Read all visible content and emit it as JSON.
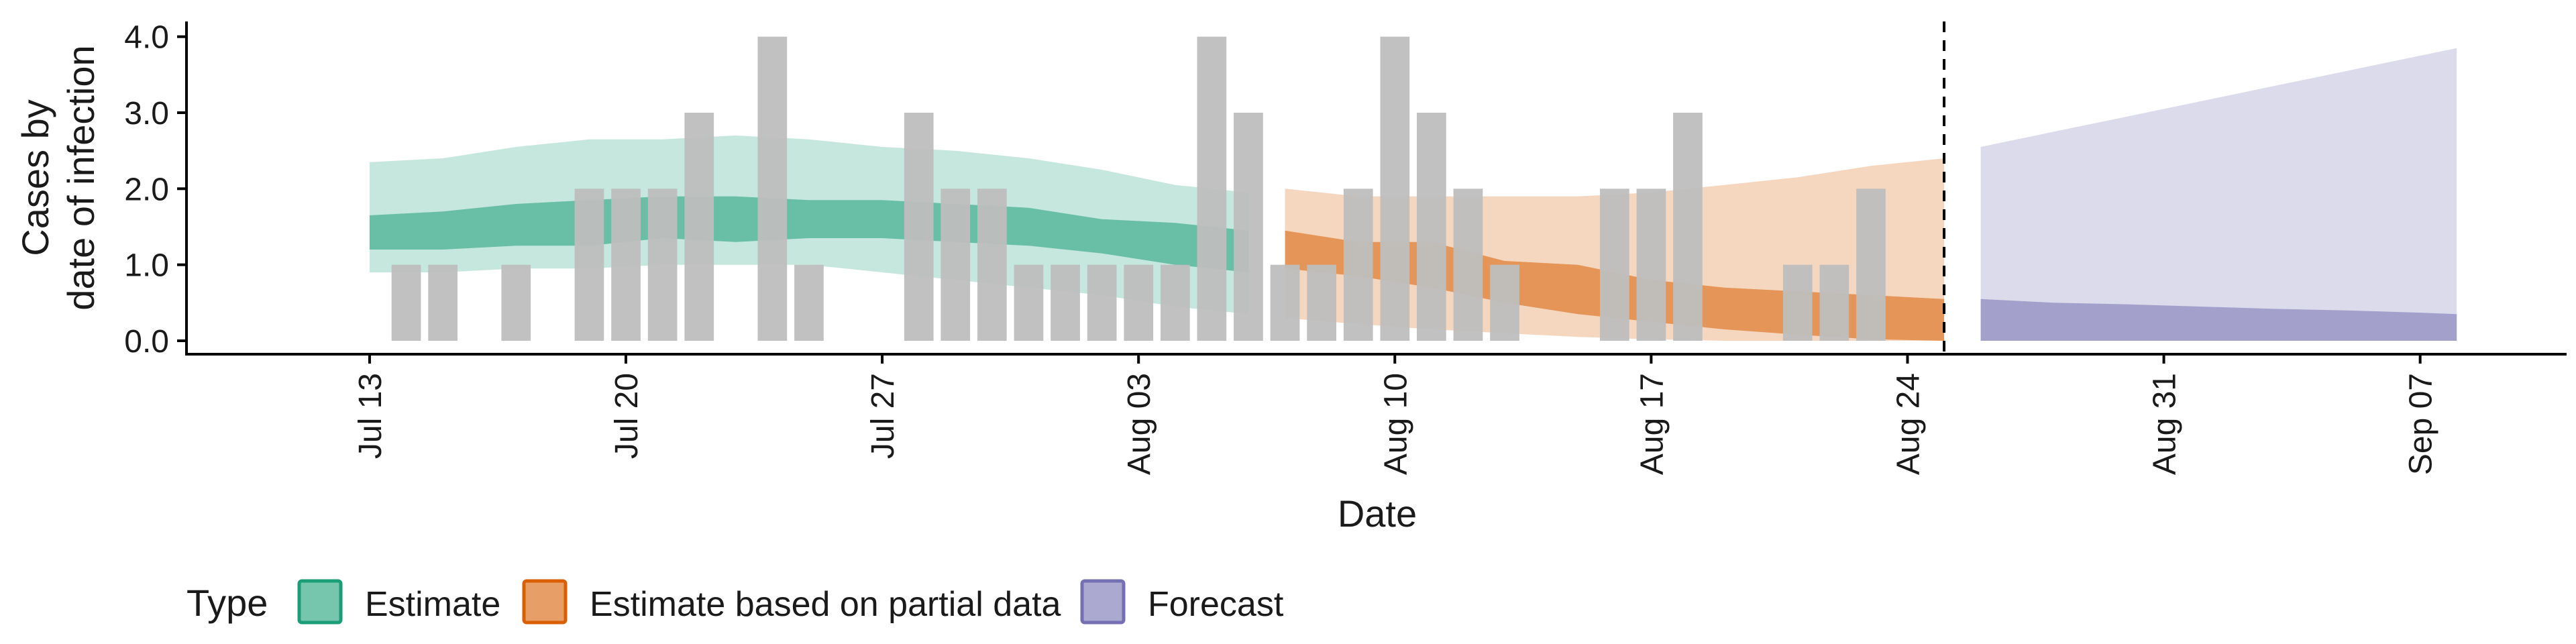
{
  "chart_data": {
    "type": "bar+ribbon",
    "xlabel": "Date",
    "ylabel_lines": [
      "Cases by",
      "date of infection"
    ],
    "x_ticks": [
      "Jul 13",
      "Jul 20",
      "Jul 27",
      "Aug 03",
      "Aug 10",
      "Aug 17",
      "Aug 24",
      "Aug 31",
      "Sep 07"
    ],
    "y_ticks": [
      "0.0",
      "1.0",
      "2.0",
      "3.0",
      "4.0"
    ],
    "ylim": [
      0,
      4.2
    ],
    "xlim": [
      "2020-07-08",
      "2020-09-11"
    ],
    "forecast_start_line": "2020-08-25",
    "legend": {
      "title": "Type",
      "position": "bottom",
      "items": [
        {
          "label": "Estimate",
          "color": "#1b9e77"
        },
        {
          "label": "Estimate based on partial data",
          "color": "#d95f02"
        },
        {
          "label": "Forecast",
          "color": "#7570b3"
        }
      ]
    },
    "bars": {
      "color": "#bebebe",
      "dates": [
        "2020-07-14",
        "2020-07-15",
        "2020-07-17",
        "2020-07-19",
        "2020-07-20",
        "2020-07-21",
        "2020-07-22",
        "2020-07-24",
        "2020-07-25",
        "2020-07-28",
        "2020-07-29",
        "2020-07-30",
        "2020-07-31",
        "2020-08-01",
        "2020-08-02",
        "2020-08-03",
        "2020-08-04",
        "2020-08-05",
        "2020-08-06",
        "2020-08-07",
        "2020-08-08",
        "2020-08-09",
        "2020-08-10",
        "2020-08-11",
        "2020-08-12",
        "2020-08-13",
        "2020-08-16",
        "2020-08-17",
        "2020-08-18",
        "2020-08-21",
        "2020-08-22",
        "2020-08-23"
      ],
      "values": [
        1,
        1,
        1,
        2,
        2,
        2,
        3,
        4,
        1,
        3,
        2,
        2,
        1,
        1,
        1,
        1,
        1,
        4,
        3,
        1,
        1,
        2,
        4,
        3,
        2,
        1,
        2,
        2,
        3,
        1,
        1,
        2
      ]
    },
    "ribbons": [
      {
        "type": "Estimate",
        "color": "#1b9e77",
        "dates": [
          "2020-07-13",
          "2020-07-15",
          "2020-07-17",
          "2020-07-19",
          "2020-07-21",
          "2020-07-23",
          "2020-07-25",
          "2020-07-27",
          "2020-07-29",
          "2020-07-31",
          "2020-08-02",
          "2020-08-04",
          "2020-08-06"
        ],
        "lower_90": [
          0.9,
          0.9,
          0.95,
          0.95,
          1.0,
          1.0,
          1.0,
          0.9,
          0.8,
          0.7,
          0.6,
          0.45,
          0.35
        ],
        "lower_50": [
          1.2,
          1.2,
          1.25,
          1.25,
          1.35,
          1.3,
          1.35,
          1.35,
          1.3,
          1.25,
          1.15,
          1.0,
          0.9
        ],
        "upper_50": [
          1.65,
          1.7,
          1.8,
          1.85,
          1.9,
          1.9,
          1.85,
          1.85,
          1.8,
          1.75,
          1.6,
          1.55,
          1.45
        ],
        "upper_90": [
          2.35,
          2.4,
          2.55,
          2.65,
          2.65,
          2.7,
          2.65,
          2.55,
          2.5,
          2.4,
          2.25,
          2.05,
          1.95
        ]
      },
      {
        "type": "Estimate based on partial data",
        "color": "#d95f02",
        "dates": [
          "2020-08-07",
          "2020-08-09",
          "2020-08-11",
          "2020-08-13",
          "2020-08-15",
          "2020-08-17",
          "2020-08-19",
          "2020-08-21",
          "2020-08-23",
          "2020-08-25"
        ],
        "lower_90": [
          0.3,
          0.22,
          0.15,
          0.1,
          0.05,
          0.02,
          0.0,
          0.0,
          0.0,
          0.0
        ],
        "lower_50": [
          0.95,
          0.85,
          0.7,
          0.5,
          0.35,
          0.25,
          0.15,
          0.08,
          0.02,
          0.0
        ],
        "upper_50": [
          1.45,
          1.3,
          1.3,
          1.05,
          1.0,
          0.8,
          0.7,
          0.65,
          0.6,
          0.55
        ],
        "upper_90": [
          2.0,
          1.9,
          1.9,
          1.9,
          1.9,
          1.95,
          2.05,
          2.15,
          2.3,
          2.4
        ]
      },
      {
        "type": "Forecast",
        "color": "#7570b3",
        "dates": [
          "2020-08-26",
          "2020-08-28",
          "2020-08-30",
          "2020-09-01",
          "2020-09-03",
          "2020-09-05",
          "2020-09-07",
          "2020-09-08"
        ],
        "lower_90": [
          0,
          0,
          0,
          0,
          0,
          0,
          0,
          0
        ],
        "lower_50": [
          0,
          0,
          0,
          0,
          0,
          0,
          0,
          0
        ],
        "upper_50": [
          0.55,
          0.5,
          0.48,
          0.45,
          0.42,
          0.4,
          0.37,
          0.35
        ],
        "upper_90": [
          2.55,
          2.75,
          2.95,
          3.15,
          3.35,
          3.55,
          3.75,
          3.85
        ]
      }
    ]
  }
}
